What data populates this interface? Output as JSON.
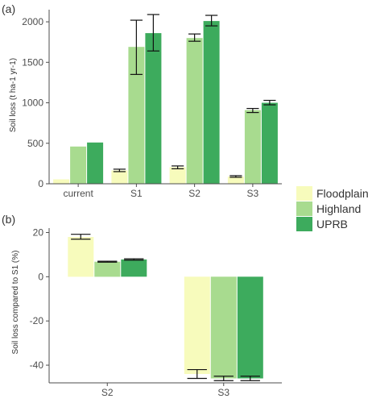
{
  "chart_data": [
    {
      "panel_label": "(a)",
      "type": "bar",
      "categories": [
        "current",
        "S1",
        "S2",
        "S3"
      ],
      "ylabel": "Soil loss (t ha-1 yr-1)",
      "ylim": [
        0,
        2150
      ],
      "yticks": [
        0,
        500,
        1000,
        1500,
        2000
      ],
      "series": [
        {
          "name": "Floodplain",
          "values": [
            55,
            165,
            205,
            90
          ],
          "err_low": [
            null,
            150,
            185,
            80
          ],
          "err_high": [
            null,
            180,
            220,
            100
          ]
        },
        {
          "name": "Highland",
          "values": [
            460,
            1690,
            1800,
            910
          ],
          "err_low": [
            null,
            1350,
            1760,
            880
          ],
          "err_high": [
            null,
            2020,
            1850,
            930
          ]
        },
        {
          "name": "UPRB",
          "values": [
            510,
            1860,
            2010,
            1000
          ],
          "err_low": [
            null,
            1640,
            1950,
            975
          ],
          "err_high": [
            null,
            2090,
            2080,
            1030
          ]
        }
      ],
      "grid": false,
      "legend": "right"
    },
    {
      "panel_label": "(b)",
      "type": "bar",
      "categories": [
        "S2",
        "S3"
      ],
      "ylabel": "Soil loss compared to S1 (%)",
      "ylim": [
        -48,
        22
      ],
      "yticks": [
        -40,
        -20,
        0,
        20
      ],
      "series": [
        {
          "name": "Floodplain",
          "values": [
            18,
            -44
          ],
          "err_low": [
            17,
            -46
          ],
          "err_high": [
            19.2,
            -42
          ]
        },
        {
          "name": "Highland",
          "values": [
            6.8,
            -46
          ],
          "err_low": [
            6.6,
            -47
          ],
          "err_high": [
            7,
            -45
          ]
        },
        {
          "name": "UPRB",
          "values": [
            7.8,
            -46
          ],
          "err_low": [
            7.5,
            -47
          ],
          "err_high": [
            8.1,
            -45
          ]
        }
      ],
      "grid": false,
      "legend": "right"
    }
  ],
  "legend": {
    "entries": [
      {
        "label": "Floodplain",
        "color": "#f7fbbc"
      },
      {
        "label": "Highland",
        "color": "#a8db8f"
      },
      {
        "label": "UPRB",
        "color": "#3dab5d"
      }
    ]
  },
  "colors": {
    "Floodplain": "#f7fbbc",
    "Highland": "#a8db8f",
    "UPRB": "#3dab5d",
    "axis": "#4d4d4d"
  }
}
